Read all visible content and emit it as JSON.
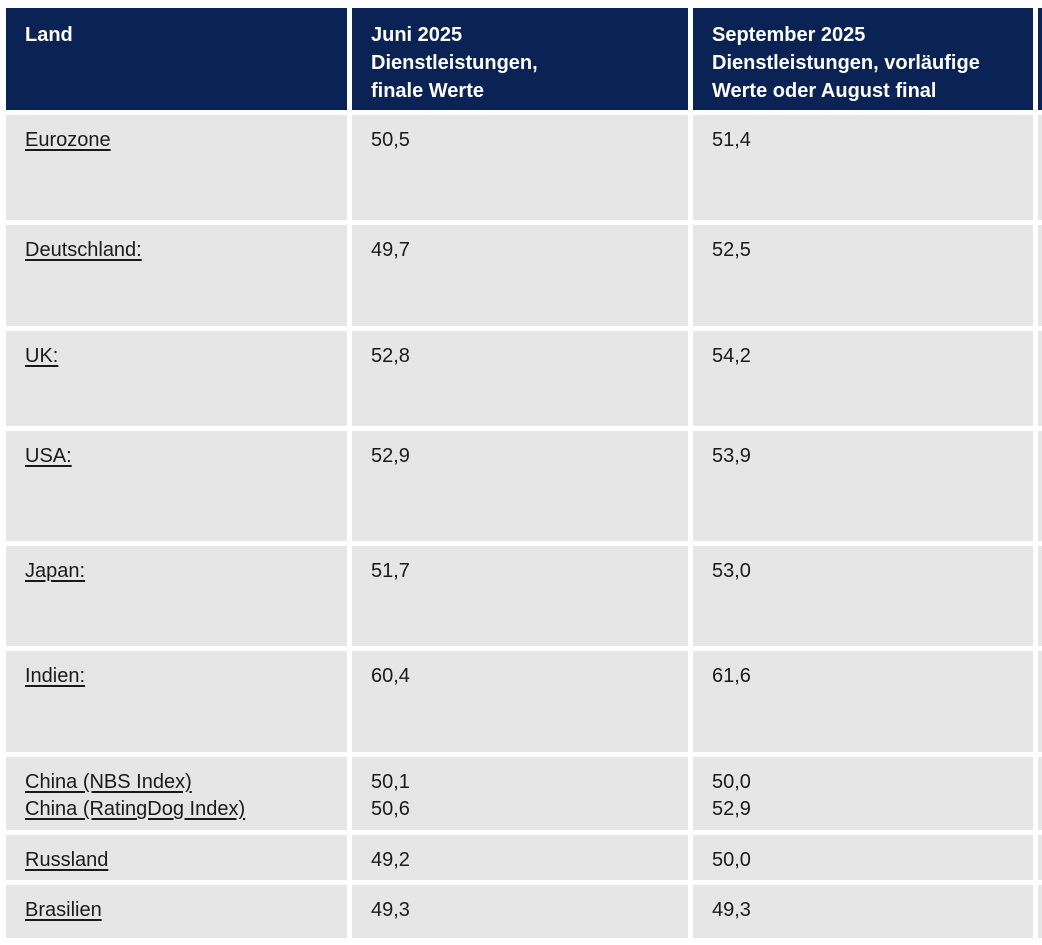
{
  "colors": {
    "header_bg": "#0a2254",
    "header_text": "#ffffff",
    "row_bg": "#e6e6e6",
    "body_text": "#1a1a1a",
    "divider": "#ffffff"
  },
  "table": {
    "header": {
      "land": {
        "lines": [
          "Land"
        ]
      },
      "juni": {
        "lines": [
          "Juni 2025",
          "Dienstleistungen,",
          "finale Werte"
        ]
      },
      "september": {
        "lines": [
          "September 2025",
          "Dienstleistungen, vorläufige",
          "Werte oder August final"
        ]
      }
    },
    "rows": [
      {
        "land": [
          "Eurozone"
        ],
        "juni": [
          "50,5"
        ],
        "september": [
          "51,4"
        ]
      },
      {
        "land": [
          "Deutschland:"
        ],
        "juni": [
          "49,7"
        ],
        "september": [
          "52,5"
        ]
      },
      {
        "land": [
          "UK:"
        ],
        "juni": [
          "52,8"
        ],
        "september": [
          "54,2"
        ]
      },
      {
        "land": [
          "USA:"
        ],
        "juni": [
          "52,9"
        ],
        "september": [
          "53,9"
        ]
      },
      {
        "land": [
          "Japan:"
        ],
        "juni": [
          "51,7"
        ],
        "september": [
          "53,0"
        ]
      },
      {
        "land": [
          "Indien:"
        ],
        "juni": [
          "60,4"
        ],
        "september": [
          "61,6"
        ]
      },
      {
        "land": [
          "China (NBS Index)",
          "China (RatingDog Index)"
        ],
        "juni": [
          "50,1",
          "50,6"
        ],
        "september": [
          "50,0",
          "52,9"
        ]
      },
      {
        "land": [
          "Russland"
        ],
        "juni": [
          "49,2"
        ],
        "september": [
          "50,0"
        ]
      },
      {
        "land": [
          "Brasilien"
        ],
        "juni": [
          "49,3"
        ],
        "september": [
          "49,3"
        ]
      }
    ]
  }
}
